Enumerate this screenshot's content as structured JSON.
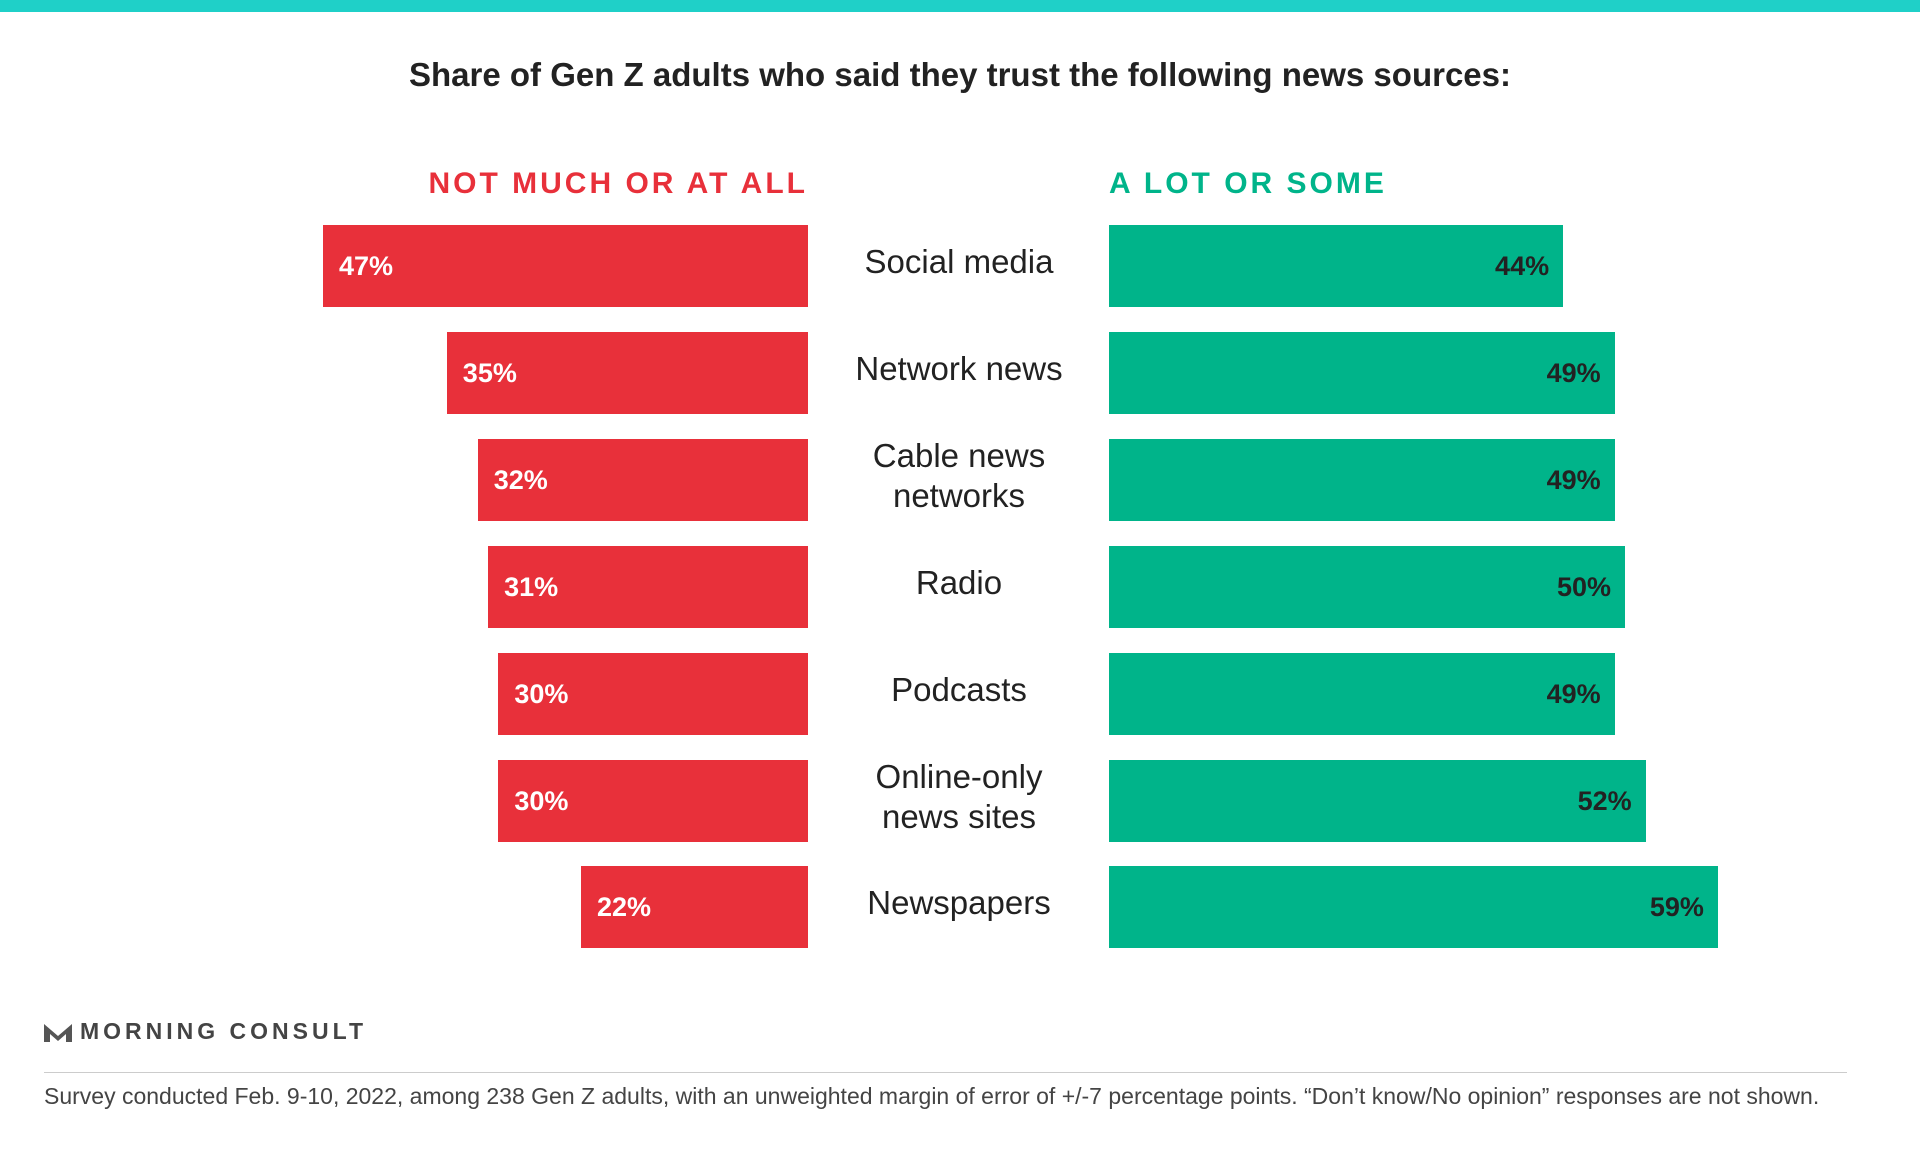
{
  "chart_data": {
    "type": "diverging_bar",
    "title": "Share of Gen Z adults who said they trust the following news sources:",
    "categories": [
      "Social media",
      "Network news",
      "Cable news networks",
      "Radio",
      "Podcasts",
      "Online-only news sites",
      "Newspapers"
    ],
    "series": [
      {
        "name": "NOT MUCH OR AT ALL",
        "color": "#e8303a",
        "values": [
          47,
          35,
          32,
          31,
          30,
          30,
          22
        ],
        "value_labels": [
          "47%",
          "35%",
          "32%",
          "31%",
          "30%",
          "30%",
          "22%"
        ]
      },
      {
        "name": "A LOT OR SOME",
        "color": "#00b48a",
        "values": [
          44,
          49,
          49,
          50,
          49,
          52,
          59
        ],
        "value_labels": [
          "44%",
          "49%",
          "49%",
          "50%",
          "49%",
          "52%",
          "59%"
        ]
      }
    ]
  },
  "brand": "MORNING CONSULT",
  "note": "Survey conducted Feb. 9-10, 2022, among 238 Gen Z adults, with an unweighted margin of error of +/-7 percentage points. “Don’t know/No opinion” responses are not shown."
}
